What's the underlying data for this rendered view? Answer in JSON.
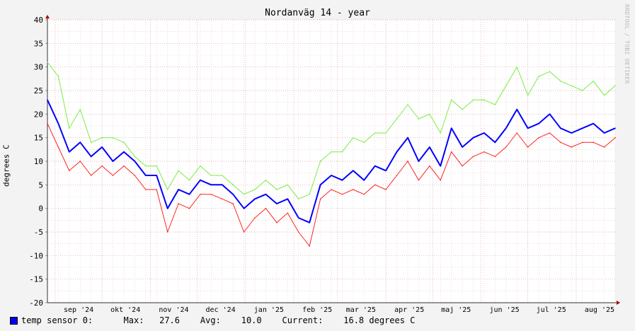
{
  "title": "Nordanväg 14 - year",
  "watermark": "RRDTOOL / TOBI OETIKER",
  "chart_data": {
    "type": "line",
    "ylabel": "degrees C",
    "ylim": [
      -20,
      40
    ],
    "ytick_values": [
      -20,
      -15,
      -10,
      -5,
      0,
      5,
      10,
      15,
      20,
      25,
      30,
      35,
      40
    ],
    "ytick_labels": [
      "-20",
      "-15",
      "-10",
      "-5",
      "0",
      "5",
      "10",
      "15",
      "20",
      "25",
      "30",
      "35",
      "40"
    ],
    "xtick_labels": [
      "sep '24",
      "okt '24",
      "nov '24",
      "dec '24",
      "jan '25",
      "feb '25",
      "mar '25",
      "apr '25",
      "maj '25",
      "jun '25",
      "jul '25",
      "aug '25"
    ],
    "x": [
      "2024-08-27",
      "2024-09-03",
      "2024-09-10",
      "2024-09-17",
      "2024-09-24",
      "2024-10-01",
      "2024-10-08",
      "2024-10-15",
      "2024-10-22",
      "2024-10-29",
      "2024-11-05",
      "2024-11-12",
      "2024-11-19",
      "2024-11-26",
      "2024-12-03",
      "2024-12-10",
      "2024-12-17",
      "2024-12-24",
      "2024-12-31",
      "2025-01-07",
      "2025-01-14",
      "2025-01-21",
      "2025-01-28",
      "2025-02-04",
      "2025-02-11",
      "2025-02-18",
      "2025-02-25",
      "2025-03-04",
      "2025-03-11",
      "2025-03-18",
      "2025-03-25",
      "2025-04-01",
      "2025-04-08",
      "2025-04-15",
      "2025-04-22",
      "2025-04-29",
      "2025-05-06",
      "2025-05-13",
      "2025-05-20",
      "2025-05-27",
      "2025-06-03",
      "2025-06-10",
      "2025-06-17",
      "2025-06-24",
      "2025-07-01",
      "2025-07-08",
      "2025-07-15",
      "2025-07-22",
      "2025-07-29",
      "2025-08-05",
      "2025-08-12",
      "2025-08-19",
      "2025-08-26"
    ],
    "series": [
      {
        "name": "max",
        "color": "#77ee44",
        "values": [
          31,
          28,
          17,
          21,
          14,
          15,
          15,
          14,
          11,
          9,
          9,
          4,
          8,
          6,
          9,
          7,
          7,
          5,
          3,
          4,
          6,
          4,
          5,
          2,
          3,
          10,
          12,
          12,
          15,
          14,
          16,
          16,
          19,
          22,
          19,
          20,
          16,
          23,
          21,
          23,
          23,
          22,
          26,
          30,
          24,
          28,
          29,
          27,
          26,
          25,
          27,
          24,
          26
        ]
      },
      {
        "name": "temp sensor 0",
        "color": "#0000ff",
        "values": [
          23,
          18,
          12,
          14,
          11,
          13,
          10,
          12,
          10,
          7,
          7,
          0,
          4,
          3,
          6,
          5,
          5,
          3,
          0,
          2,
          3,
          1,
          2,
          -2,
          -3,
          5,
          7,
          6,
          8,
          6,
          9,
          8,
          12,
          15,
          10,
          13,
          9,
          17,
          13,
          15,
          16,
          14,
          17,
          21,
          17,
          18,
          20,
          17,
          16,
          17,
          18,
          16,
          17
        ]
      },
      {
        "name": "min",
        "color": "#ff2222",
        "values": [
          18,
          13,
          8,
          10,
          7,
          9,
          7,
          9,
          7,
          4,
          4,
          -5,
          1,
          0,
          3,
          3,
          2,
          1,
          -5,
          -2,
          0,
          -3,
          -1,
          -5,
          -8,
          2,
          4,
          3,
          4,
          3,
          5,
          4,
          7,
          10,
          6,
          9,
          6,
          12,
          9,
          11,
          12,
          11,
          13,
          16,
          13,
          15,
          16,
          14,
          13,
          14,
          14,
          13,
          15
        ]
      }
    ]
  },
  "legend": {
    "color": "#0000ff",
    "label": "temp sensor 0:",
    "max_label": "Max:",
    "max_value": "27.6",
    "avg_label": "Avg:",
    "avg_value": "10.0",
    "current_label": "Current:",
    "current_value": "16.8 degrees C"
  }
}
